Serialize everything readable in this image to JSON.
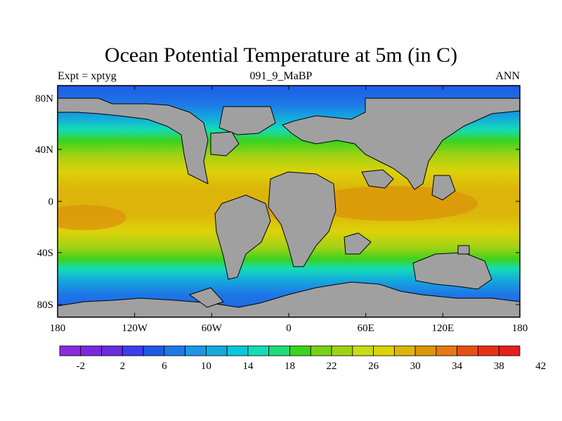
{
  "map": {
    "title": "Ocean Potential Temperature at 5m (in C)",
    "subtitle_left": "Expt = xptyg",
    "subtitle_center": "091_9_MaBP",
    "subtitle_right": "ANN",
    "lat_ticks": [
      "80N",
      "40N",
      "0",
      "40S",
      "80S"
    ],
    "lon_ticks": [
      "180",
      "120W",
      "60W",
      "0",
      "60E",
      "120E",
      "180"
    ],
    "land_color": "#a0a0a0"
  },
  "colorbar": {
    "labels": [
      "-2",
      "2",
      "6",
      "10",
      "14",
      "18",
      "22",
      "26",
      "30",
      "34",
      "38",
      "42"
    ],
    "colors": [
      "#8a2be2",
      "#7a28e0",
      "#6a2ae0",
      "#3c3cf0",
      "#1e5ae6",
      "#1e78e6",
      "#1e96e6",
      "#14aadc",
      "#0ac8dc",
      "#14dcb4",
      "#1edc78",
      "#3cd21e",
      "#78d214",
      "#a0d214",
      "#c8dc14",
      "#dcd20a",
      "#dcb40a",
      "#dc960a",
      "#e67814",
      "#e65014",
      "#e63214",
      "#e61e1e"
    ]
  }
}
